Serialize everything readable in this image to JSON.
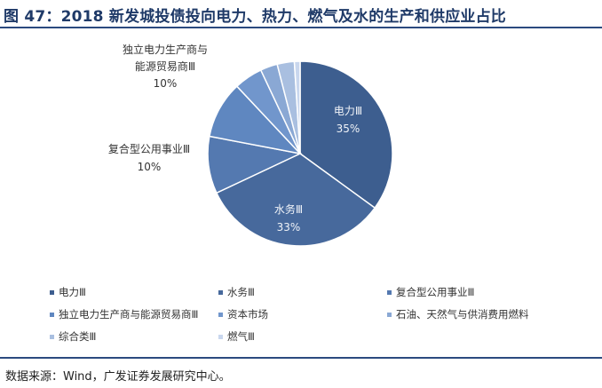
{
  "title": "图 47：2018 新发城投债投向电力、热力、燃气及水的生产和供应业占比",
  "source": "数据来源：Wind，广发证券发展研究中心。",
  "chart_data": {
    "type": "pie",
    "slices": [
      {
        "name": "电力Ⅲ",
        "value": 35,
        "label": "35%",
        "color": "#3d5e8f"
      },
      {
        "name": "水务Ⅲ",
        "value": 33,
        "label": "33%",
        "color": "#47699c"
      },
      {
        "name": "复合型公用事业Ⅲ",
        "value": 10,
        "label": "10%",
        "color": "#5479b0"
      },
      {
        "name": "独立电力生产商与能源贸易商Ⅲ",
        "value": 10,
        "label": "10%",
        "color": "#5f87c0"
      },
      {
        "name": "资本市场",
        "value": 5,
        "label": "",
        "color": "#7196cc"
      },
      {
        "name": "石油、天然气与供消费用燃料",
        "value": 3,
        "label": "",
        "color": "#8aa8d4"
      },
      {
        "name": "综合类Ⅲ",
        "value": 3,
        "label": "",
        "color": "#a9bfe0"
      },
      {
        "name": "燃气Ⅲ",
        "value": 1,
        "label": "",
        "color": "#c9d7ee"
      }
    ],
    "legend_position": "bottom"
  }
}
